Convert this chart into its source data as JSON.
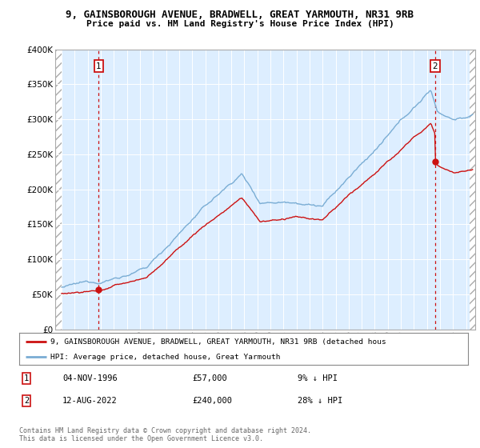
{
  "title1": "9, GAINSBOROUGH AVENUE, BRADWELL, GREAT YARMOUTH, NR31 9RB",
  "title2": "Price paid vs. HM Land Registry's House Price Index (HPI)",
  "ylim": [
    0,
    400000
  ],
  "yticks": [
    0,
    50000,
    100000,
    150000,
    200000,
    250000,
    300000,
    350000,
    400000
  ],
  "ytick_labels": [
    "£0",
    "£50K",
    "£100K",
    "£150K",
    "£200K",
    "£250K",
    "£300K",
    "£350K",
    "£400K"
  ],
  "xlim_start": 1993.5,
  "xlim_end": 2025.7,
  "hatch_left_end": 1994.0,
  "hatch_right_start": 2025.3,
  "sale1_year": 1996.84,
  "sale1_price": 57000,
  "sale2_year": 2022.62,
  "sale2_price": 240000,
  "hpi_color": "#7aadd4",
  "price_color": "#cc1111",
  "annotation1_label": "1",
  "annotation2_label": "2",
  "legend_line1": "9, GAINSBOROUGH AVENUE, BRADWELL, GREAT YARMOUTH, NR31 9RB (detached hous",
  "legend_line2": "HPI: Average price, detached house, Great Yarmouth",
  "note1_label": "1",
  "note1_date": "04-NOV-1996",
  "note1_price": "£57,000",
  "note1_hpi": "9% ↓ HPI",
  "note2_label": "2",
  "note2_date": "12-AUG-2022",
  "note2_price": "£240,000",
  "note2_hpi": "28% ↓ HPI",
  "footer": "Contains HM Land Registry data © Crown copyright and database right 2024.\nThis data is licensed under the Open Government Licence v3.0.",
  "bg_color": "#ddeeff",
  "grid_color": "#ffffff"
}
